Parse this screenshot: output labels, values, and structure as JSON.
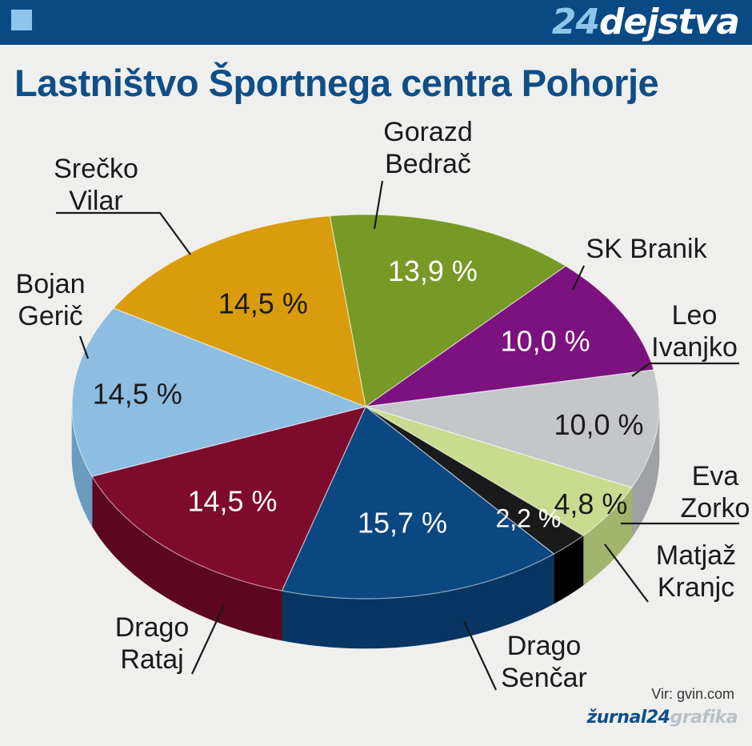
{
  "header": {
    "brand_number": "24",
    "brand_word": "dejstva"
  },
  "title": "Lastništvo Športnega centra Pohorje",
  "chart_data": {
    "type": "pie",
    "title": "Lastništvo Športnega centra Pohorje",
    "slices": [
      {
        "label": "Gorazd Bedrač",
        "value": 13.9,
        "display": "13,9 %",
        "color": "#779926",
        "side": "#5e7a1c",
        "label_color": "#ffffff"
      },
      {
        "label": "SK Branik",
        "value": 10.0,
        "display": "10,0 %",
        "color": "#7b127f",
        "side": "#5e0d62",
        "label_color": "#ffffff"
      },
      {
        "label": "Leo Ivanjko",
        "value": 10.0,
        "display": "10,0 %",
        "color": "#c4c6ca",
        "side": "#9fa1a5",
        "label_color": "#1a1a1a"
      },
      {
        "label": "Eva Zorko",
        "value": 4.8,
        "display": "4,8 %",
        "color": "#c9db8f",
        "side": "#a3b56c",
        "label_color": "#1a1a1a"
      },
      {
        "label": "Matjaž Kranjc",
        "value": 2.2,
        "display": "2,2 %",
        "color": "#1a1a1a",
        "side": "#000000",
        "label_color": "#ffffff"
      },
      {
        "label": "Drago Senčar",
        "value": 15.7,
        "display": "15,7 %",
        "color": "#0b4780",
        "side": "#083563",
        "label_color": "#ffffff"
      },
      {
        "label": "Drago Rataj",
        "value": 14.5,
        "display": "14,5 %",
        "color": "#7e0a2c",
        "side": "#5c0620",
        "label_color": "#ffffff"
      },
      {
        "label": "Bojan Gerič",
        "value": 14.5,
        "display": "14,5 %",
        "color": "#8dbde0",
        "side": "#6b9cc0",
        "label_color": "#1a1a1a"
      },
      {
        "label": "Srečko Vilar",
        "value": 14.5,
        "display": "14,5 %",
        "color": "#d99c0c",
        "side": "#b07d08",
        "label_color": "#1a1a1a"
      }
    ],
    "legend_labels": [
      {
        "line1": "Gorazd",
        "line2": "Bedrač"
      },
      {
        "line1": "SK Branik",
        "line2": ""
      },
      {
        "line1": "Leo",
        "line2": "Ivanjko"
      },
      {
        "line1": "Eva",
        "line2": "Zorko"
      },
      {
        "line1": "Matjaž",
        "line2": "Kranjc"
      },
      {
        "line1": "Drago",
        "line2": "Senčar"
      },
      {
        "line1": "Drago",
        "line2": "Rataj"
      },
      {
        "line1": "Bojan",
        "line2": "Gerič"
      },
      {
        "line1": "Srečko",
        "line2": "Vilar"
      }
    ]
  },
  "source": "Vir: gvin.com",
  "credit": {
    "brand": "žurnal24",
    "suffix": "grafika"
  },
  "colors": {
    "header_bg": "#0a4a84",
    "title": "#0f4e87",
    "accent_light": "#8ec5ea"
  }
}
